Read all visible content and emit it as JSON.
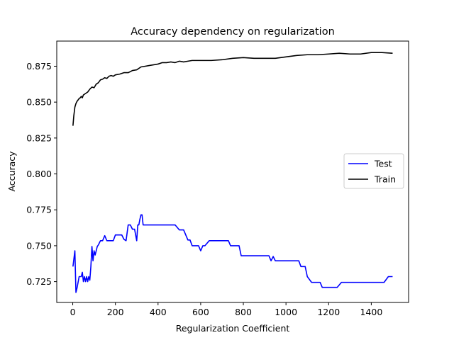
{
  "chart_data": {
    "type": "line",
    "title": "Accuracy dependency on regularization",
    "xlabel": "Regularization Coefficient",
    "ylabel": "Accuracy",
    "xlim": [
      -75,
      1575
    ],
    "ylim": [
      0.7105,
      0.8925
    ],
    "xticks": [
      0,
      200,
      400,
      600,
      800,
      1000,
      1200,
      1400
    ],
    "yticks": [
      0.725,
      0.75,
      0.775,
      0.8,
      0.825,
      0.85,
      0.875
    ],
    "xtick_labels": [
      "0",
      "200",
      "400",
      "600",
      "800",
      "1000",
      "1200",
      "1400"
    ],
    "ytick_labels": [
      "0.725",
      "0.750",
      "0.775",
      "0.800",
      "0.825",
      "0.850",
      "0.875"
    ],
    "grid": false,
    "legend_position": "right",
    "series": [
      {
        "name": "Test",
        "color": "#0000ff",
        "x": [
          1,
          10,
          15,
          20,
          25,
          30,
          40,
          45,
          50,
          55,
          60,
          65,
          70,
          75,
          80,
          85,
          90,
          95,
          100,
          105,
          110,
          115,
          120,
          130,
          140,
          150,
          160,
          170,
          175,
          180,
          190,
          200,
          210,
          220,
          230,
          240,
          250,
          260,
          265,
          270,
          280,
          290,
          300,
          305,
          310,
          315,
          320,
          325,
          330,
          340,
          350,
          360,
          380,
          400,
          420,
          440,
          460,
          480,
          500,
          520,
          540,
          545,
          550,
          560,
          580,
          590,
          600,
          610,
          620,
          640,
          660,
          680,
          700,
          720,
          730,
          740,
          760,
          780,
          790,
          800,
          820,
          840,
          860,
          880,
          900,
          920,
          930,
          940,
          950,
          960,
          980,
          1000,
          1020,
          1040,
          1060,
          1070,
          1080,
          1090,
          1100,
          1120,
          1140,
          1160,
          1170,
          1180,
          1200,
          1220,
          1240,
          1260,
          1280,
          1300,
          1320,
          1340,
          1360,
          1380,
          1400,
          1420,
          1440,
          1460,
          1480,
          1500
        ],
        "y": [
          0.7355,
          0.7465,
          0.7175,
          0.7205,
          0.7245,
          0.7285,
          0.7285,
          0.7315,
          0.725,
          0.7285,
          0.725,
          0.7285,
          0.725,
          0.7285,
          0.726,
          0.7355,
          0.7495,
          0.7395,
          0.7465,
          0.7435,
          0.7465,
          0.7495,
          0.7505,
          0.7535,
          0.7535,
          0.757,
          0.7535,
          0.7535,
          0.7535,
          0.7535,
          0.7535,
          0.7575,
          0.7575,
          0.7575,
          0.7575,
          0.7545,
          0.7535,
          0.7645,
          0.7645,
          0.7645,
          0.7615,
          0.7615,
          0.7535,
          0.7645,
          0.7645,
          0.7685,
          0.7715,
          0.7715,
          0.7645,
          0.7645,
          0.7645,
          0.7645,
          0.7645,
          0.7645,
          0.7645,
          0.7645,
          0.7645,
          0.7645,
          0.761,
          0.761,
          0.754,
          0.754,
          0.754,
          0.75,
          0.75,
          0.75,
          0.7465,
          0.75,
          0.75,
          0.7535,
          0.7535,
          0.7535,
          0.7535,
          0.7535,
          0.7535,
          0.75,
          0.75,
          0.75,
          0.743,
          0.743,
          0.743,
          0.743,
          0.743,
          0.743,
          0.743,
          0.743,
          0.7395,
          0.7425,
          0.7395,
          0.7395,
          0.7395,
          0.7395,
          0.7395,
          0.7395,
          0.7395,
          0.7355,
          0.7355,
          0.7355,
          0.7285,
          0.7245,
          0.7245,
          0.7245,
          0.721,
          0.721,
          0.721,
          0.721,
          0.721,
          0.7245,
          0.7245,
          0.7245,
          0.7245,
          0.7245,
          0.7245,
          0.7245,
          0.7245,
          0.7245,
          0.7245,
          0.7245,
          0.7285,
          0.7285
        ]
      },
      {
        "name": "Train",
        "color": "#000000",
        "x": [
          1,
          5,
          10,
          15,
          20,
          25,
          30,
          35,
          40,
          45,
          50,
          60,
          70,
          80,
          90,
          100,
          110,
          120,
          130,
          140,
          150,
          160,
          170,
          180,
          190,
          200,
          220,
          240,
          260,
          280,
          300,
          320,
          340,
          360,
          380,
          400,
          420,
          440,
          460,
          480,
          500,
          520,
          540,
          560,
          580,
          600,
          650,
          700,
          750,
          800,
          850,
          900,
          950,
          1000,
          1050,
          1100,
          1150,
          1200,
          1250,
          1300,
          1350,
          1400,
          1450,
          1500
        ],
        "y": [
          0.8335,
          0.8405,
          0.8465,
          0.849,
          0.8505,
          0.8515,
          0.8525,
          0.853,
          0.854,
          0.853,
          0.855,
          0.856,
          0.857,
          0.859,
          0.8605,
          0.86,
          0.8625,
          0.8635,
          0.8655,
          0.866,
          0.867,
          0.8665,
          0.868,
          0.8685,
          0.868,
          0.869,
          0.8695,
          0.8705,
          0.8705,
          0.872,
          0.8725,
          0.8745,
          0.875,
          0.8755,
          0.876,
          0.8765,
          0.8775,
          0.8775,
          0.878,
          0.8775,
          0.8785,
          0.878,
          0.8785,
          0.879,
          0.879,
          0.879,
          0.879,
          0.8795,
          0.8805,
          0.881,
          0.8805,
          0.8805,
          0.8805,
          0.8815,
          0.8825,
          0.883,
          0.883,
          0.8835,
          0.884,
          0.8835,
          0.8835,
          0.8845,
          0.8845,
          0.884
        ]
      }
    ]
  }
}
